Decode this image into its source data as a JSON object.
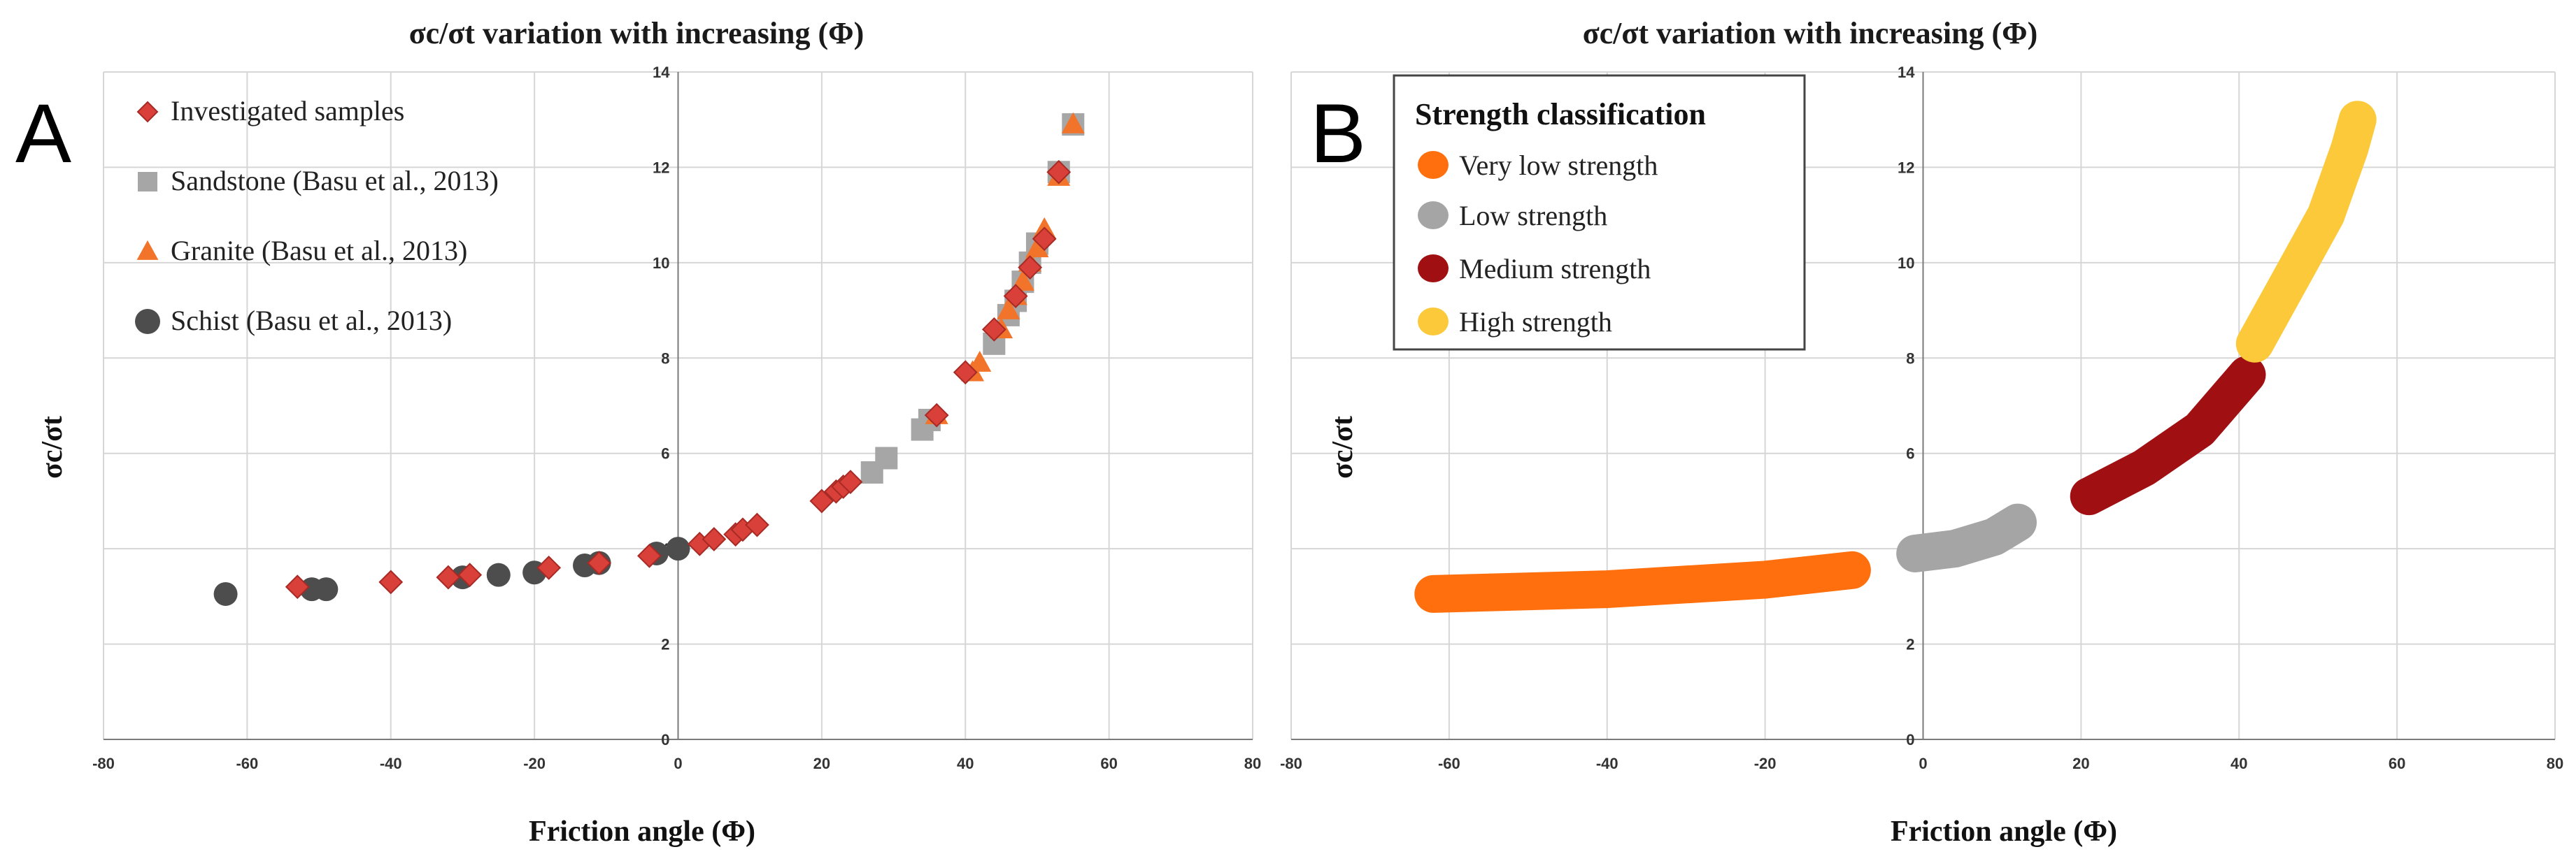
{
  "colors": {
    "investigated": "#d9403a",
    "investigated_edge": "#a82a25",
    "sandstone": "#a6a6a6",
    "granite": "#f2742a",
    "schist": "#4d4d4d",
    "very_low": "#ff6f0d",
    "low": "#a5a5a5",
    "medium": "#a00f12",
    "high": "#fcc93a"
  },
  "chart_data": [
    {
      "id": "A",
      "panel_letter": "A",
      "type": "scatter",
      "title": "σc/σt variation with increasing (Φ)",
      "xlabel": "Friction angle (Φ)",
      "ylabel": "σc/σt",
      "xlim": [
        -80,
        80
      ],
      "ylim": [
        0,
        14
      ],
      "xticks": [
        "-80",
        "-60",
        "-40",
        "-20",
        "0",
        "20",
        "40",
        "60",
        "80"
      ],
      "yticks": [
        "0",
        "2",
        "4",
        "6",
        "8",
        "10",
        "12",
        "14"
      ],
      "legend_position": "top-left",
      "series": [
        {
          "name": "Investigated samples",
          "marker": "diamond",
          "color_key": "investigated",
          "points": [
            [
              -53,
              3.2
            ],
            [
              -40,
              3.3
            ],
            [
              -32,
              3.4
            ],
            [
              -29,
              3.45
            ],
            [
              -18,
              3.6
            ],
            [
              -11,
              3.7
            ],
            [
              -4,
              3.85
            ],
            [
              3,
              4.1
            ],
            [
              5,
              4.2
            ],
            [
              8,
              4.3
            ],
            [
              9,
              4.4
            ],
            [
              11,
              4.5
            ],
            [
              20,
              5.0
            ],
            [
              22,
              5.2
            ],
            [
              23,
              5.3
            ],
            [
              24,
              5.4
            ],
            [
              36,
              6.8
            ],
            [
              40,
              7.7
            ],
            [
              44,
              8.6
            ],
            [
              47,
              9.3
            ],
            [
              49,
              9.9
            ],
            [
              51,
              10.5
            ],
            [
              53,
              11.9
            ]
          ]
        },
        {
          "name": "Sandstone (Basu et al., 2013)",
          "marker": "square",
          "color_key": "sandstone",
          "points": [
            [
              27,
              5.6
            ],
            [
              29,
              5.9
            ],
            [
              34,
              6.5
            ],
            [
              35,
              6.7
            ],
            [
              44,
              8.3
            ],
            [
              46,
              8.9
            ],
            [
              47,
              9.2
            ],
            [
              48,
              9.6
            ],
            [
              49,
              10.0
            ],
            [
              50,
              10.4
            ],
            [
              53,
              11.9
            ],
            [
              55,
              12.9
            ]
          ]
        },
        {
          "name": "Granite (Basu et al., 2013)",
          "marker": "triangle",
          "color_key": "granite",
          "points": [
            [
              36,
              6.8
            ],
            [
              41,
              7.7
            ],
            [
              42,
              7.9
            ],
            [
              45,
              8.6
            ],
            [
              46,
              9.0
            ],
            [
              47,
              9.3
            ],
            [
              48,
              9.6
            ],
            [
              49,
              10.0
            ],
            [
              50,
              10.3
            ],
            [
              51,
              10.7
            ],
            [
              53,
              11.8
            ],
            [
              55,
              12.9
            ]
          ]
        },
        {
          "name": "Schist (Basu et al., 2013)",
          "marker": "circle",
          "color_key": "schist",
          "points": [
            [
              -63,
              3.05
            ],
            [
              -51,
              3.15
            ],
            [
              -49,
              3.15
            ],
            [
              -30,
              3.4
            ],
            [
              -25,
              3.45
            ],
            [
              -20,
              3.5
            ],
            [
              -13,
              3.65
            ],
            [
              -11,
              3.7
            ],
            [
              -3,
              3.9
            ],
            [
              0,
              4.0
            ]
          ]
        }
      ]
    },
    {
      "id": "B",
      "panel_letter": "B",
      "type": "line",
      "title": "σc/σt variation with increasing (Φ)",
      "xlabel": "Friction angle (Φ)",
      "ylabel": "σc/σt",
      "xlim": [
        -80,
        80
      ],
      "ylim": [
        0,
        14
      ],
      "xticks": [
        "-80",
        "-60",
        "-40",
        "-20",
        "0",
        "20",
        "40",
        "60",
        "80"
      ],
      "yticks": [
        "0",
        "2",
        "4",
        "6",
        "8",
        "10",
        "12",
        "14"
      ],
      "legend_title": "Strength classification",
      "legend_position": "top-left",
      "series": [
        {
          "name": "Very low strength",
          "color_key": "very_low",
          "points": [
            [
              -62,
              3.05
            ],
            [
              -40,
              3.15
            ],
            [
              -20,
              3.35
            ],
            [
              -9,
              3.55
            ]
          ]
        },
        {
          "name": "Low strength",
          "color_key": "low",
          "points": [
            [
              -1,
              3.9
            ],
            [
              4,
              4.0
            ],
            [
              9,
              4.25
            ],
            [
              12,
              4.55
            ]
          ]
        },
        {
          "name": "Medium strength",
          "color_key": "medium",
          "points": [
            [
              21,
              5.1
            ],
            [
              28,
              5.7
            ],
            [
              35,
              6.5
            ],
            [
              41,
              7.65
            ]
          ]
        },
        {
          "name": "High strength",
          "color_key": "high",
          "points": [
            [
              42,
              8.3
            ],
            [
              46,
              9.5
            ],
            [
              51,
              11.0
            ],
            [
              54,
              12.4
            ],
            [
              55,
              13.0
            ]
          ]
        }
      ]
    }
  ]
}
